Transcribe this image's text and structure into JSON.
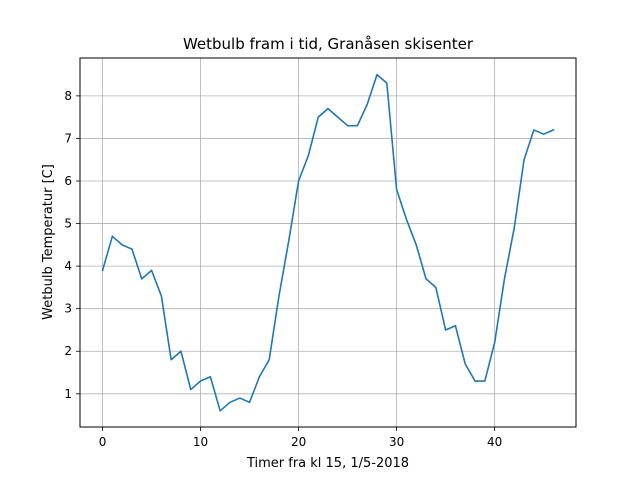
{
  "chart_data": {
    "type": "line",
    "title": "Wetbulb fram i tid, Granåsen skisenter",
    "xlabel": "Timer fra kl 15, 1/5-2018",
    "ylabel": "Wetbulb Temperatur [C]",
    "xlim": [
      -2.3,
      48.3
    ],
    "ylim": [
      0.22,
      8.89
    ],
    "xticks": [
      0,
      10,
      20,
      30,
      40
    ],
    "yticks": [
      1,
      2,
      3,
      4,
      5,
      6,
      7,
      8
    ],
    "grid": true,
    "line_color": "#1f77b4",
    "series": [
      {
        "x": [
          0,
          1,
          2,
          3,
          4,
          5,
          6,
          7,
          8,
          9,
          10,
          11,
          12,
          13,
          14,
          15,
          16,
          17,
          18,
          19,
          20,
          21,
          22,
          23,
          24,
          25,
          26,
          27,
          28,
          29,
          30,
          31,
          32,
          33,
          34,
          35,
          36,
          37,
          38,
          39,
          40,
          41,
          42,
          43,
          44,
          45,
          46
        ],
        "y": [
          3.9,
          4.7,
          4.5,
          4.4,
          3.7,
          3.9,
          3.3,
          1.8,
          2.0,
          1.1,
          1.3,
          1.4,
          0.6,
          0.8,
          0.9,
          0.8,
          1.4,
          1.8,
          3.3,
          4.6,
          6.0,
          6.6,
          7.5,
          7.7,
          7.5,
          7.3,
          7.3,
          7.8,
          8.5,
          8.3,
          5.8,
          5.1,
          4.5,
          3.7,
          3.5,
          2.5,
          2.6,
          1.7,
          1.3,
          1.3,
          2.2,
          3.7,
          4.9,
          6.5,
          7.2,
          7.1,
          7.2
        ]
      }
    ]
  }
}
